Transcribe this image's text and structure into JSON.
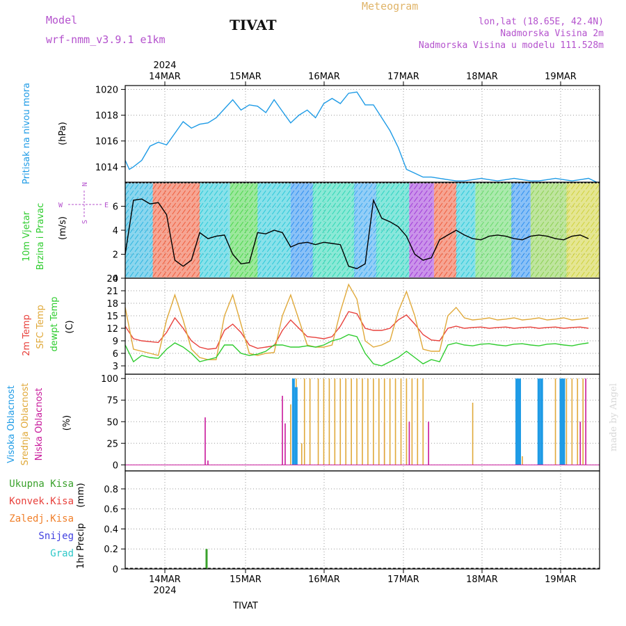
{
  "header": {
    "model_label": "Model",
    "model_name": "wrf-nmm_v3.9.1 e1km",
    "station": "TIVAT",
    "product": "Meteogram",
    "coords": "lon,lat (18.65E, 42.4N)",
    "elevation": "Nadmorska Visina 2m",
    "model_elevation": "Nadmorska Visina u modelu 111.528m",
    "footer_station": "TIVAT",
    "credit": "made by Angel",
    "year": "2024"
  },
  "colors": {
    "pressure": "#1e9be6",
    "temp2m": "#e8413c",
    "sfc": "#e0a93a",
    "dewpt": "#2ecc2e",
    "high_cloud": "#1e9be6",
    "mid_cloud": "#e0a93a",
    "low_cloud": "#c8189b",
    "total_rain": "#3aa12c",
    "conv_rain": "#e8413c",
    "frz_rain": "#f07f2a",
    "snow": "#4040e0",
    "hail": "#2ec8c8",
    "label_purple": "#b452cd"
  },
  "chart_data": [
    {
      "panel": "pressure",
      "type": "line",
      "ylabel_name": "Pritisak na nivou mora",
      "ylabel_unit": "(hPa)",
      "ylim": [
        1012.8,
        1020.3
      ],
      "yticks": [
        1014,
        1016,
        1018,
        1020
      ],
      "xticks": [
        "14MAR",
        "15MAR",
        "16MAR",
        "17MAR",
        "18MAR",
        "19MAR"
      ],
      "grid": true,
      "series": [
        {
          "key": "pressure",
          "x": [
            0,
            1.5,
            3,
            6,
            9,
            12,
            15,
            18,
            21,
            24,
            27,
            30,
            33,
            36,
            39,
            42,
            45,
            48,
            51,
            54,
            57,
            60,
            63,
            66,
            69,
            72,
            75,
            78,
            81,
            84,
            87,
            90,
            93,
            96,
            99,
            102,
            105,
            108,
            111,
            114,
            117,
            120,
            123,
            126,
            129,
            132,
            135,
            138,
            141,
            144,
            147,
            150,
            153,
            156,
            159,
            162,
            165,
            168,
            171
          ],
          "values": [
            1014.5,
            1013.8,
            1014.0,
            1014.5,
            1015.6,
            1015.9,
            1015.7,
            1016.6,
            1017.5,
            1017.0,
            1017.3,
            1017.4,
            1017.8,
            1018.5,
            1019.2,
            1018.4,
            1018.8,
            1018.7,
            1018.2,
            1019.2,
            1018.3,
            1017.4,
            1018.0,
            1018.4,
            1017.8,
            1018.9,
            1019.3,
            1018.9,
            1019.7,
            1019.8,
            1018.8,
            1018.8,
            1017.8,
            1016.8,
            1015.5,
            1013.8,
            1013.5,
            1013.2,
            1013.2,
            1013.1,
            1013.0,
            1012.9,
            1012.9,
            1013.0,
            1013.1,
            1013.0,
            1012.9,
            1013.0,
            1013.1,
            1013.0,
            1012.9,
            1012.9,
            1013.0,
            1013.1,
            1013.0,
            1012.9,
            1013.0,
            1013.1,
            1012.8
          ]
        }
      ]
    },
    {
      "panel": "wind",
      "type": "line",
      "ylabel_name": [
        "10m Vjetar",
        "Brzina i Pravac"
      ],
      "ylabel_unit": "(m/s)",
      "compass": {
        "north": "N",
        "south": "S",
        "east": "E",
        "west": "W"
      },
      "ylim": [
        0,
        8
      ],
      "yticks": [
        0,
        2,
        4,
        6
      ],
      "grid": true,
      "series": [
        {
          "key": "wind_speed",
          "x": [
            0,
            3,
            6,
            9,
            12,
            15,
            18,
            21,
            24,
            27,
            30,
            33,
            36,
            39,
            42,
            45,
            48,
            51,
            54,
            57,
            60,
            63,
            66,
            69,
            72,
            75,
            78,
            81,
            84,
            87,
            90,
            93,
            96,
            99,
            102,
            105,
            108,
            111,
            114,
            117,
            120,
            123,
            126,
            129,
            132,
            135,
            138,
            141,
            144,
            147,
            150,
            153,
            156,
            159,
            162,
            165,
            168
          ],
          "values": [
            2.0,
            6.5,
            6.6,
            6.2,
            6.3,
            5.3,
            1.5,
            1.0,
            1.5,
            3.8,
            3.3,
            3.5,
            3.6,
            2.0,
            1.2,
            1.3,
            3.8,
            3.7,
            4.0,
            3.8,
            2.6,
            2.9,
            3.0,
            2.8,
            3.0,
            2.9,
            2.8,
            1.0,
            0.8,
            1.2,
            6.5,
            5.0,
            4.7,
            4.3,
            3.5,
            2.0,
            1.5,
            1.7,
            3.2,
            3.6,
            4.0,
            3.6,
            3.3,
            3.2,
            3.5,
            3.6,
            3.5,
            3.3,
            3.2,
            3.5,
            3.6,
            3.5,
            3.3,
            3.2,
            3.5,
            3.6,
            3.3
          ]
        }
      ]
    },
    {
      "panel": "temperature",
      "type": "line",
      "ylabel_name": [
        "2m Temp",
        "SFC Temp",
        "dewpt Temp"
      ],
      "ylabel_unit": "(C)",
      "ylim": [
        1,
        24
      ],
      "yticks": [
        3,
        6,
        9,
        12,
        15,
        18,
        21,
        24
      ],
      "grid": true,
      "series": [
        {
          "key": "temp2m",
          "x": [
            0,
            3,
            6,
            9,
            12,
            15,
            18,
            21,
            24,
            27,
            30,
            33,
            36,
            39,
            42,
            45,
            48,
            51,
            54,
            57,
            60,
            63,
            66,
            69,
            72,
            75,
            78,
            81,
            84,
            87,
            90,
            93,
            96,
            99,
            102,
            105,
            108,
            111,
            114,
            117,
            120,
            123,
            126,
            129,
            132,
            135,
            138,
            141,
            144,
            147,
            150,
            153,
            156,
            159,
            162,
            165,
            168
          ],
          "values": [
            12.5,
            9.5,
            9.0,
            8.8,
            8.6,
            11.0,
            14.5,
            12.0,
            9.0,
            7.5,
            7.0,
            7.2,
            11.5,
            13.0,
            11.0,
            8.0,
            7.2,
            7.5,
            7.8,
            11.5,
            14.0,
            12.0,
            10.0,
            9.8,
            9.5,
            10.0,
            12.5,
            16.0,
            15.5,
            12.0,
            11.5,
            11.5,
            12.0,
            14.0,
            15.2,
            13.0,
            10.5,
            9.2,
            9.0,
            12.0,
            12.5,
            12.0,
            12.2,
            12.3,
            12.0,
            12.2,
            12.3,
            12.0,
            12.2,
            12.3,
            12.0,
            12.2,
            12.3,
            12.0,
            12.2,
            12.3,
            12.0
          ]
        },
        {
          "key": "sfc",
          "x": [
            0,
            3,
            6,
            9,
            12,
            15,
            18,
            21,
            24,
            27,
            30,
            33,
            36,
            39,
            42,
            45,
            48,
            51,
            54,
            57,
            60,
            63,
            66,
            69,
            72,
            75,
            78,
            81,
            84,
            87,
            90,
            93,
            96,
            99,
            102,
            105,
            108,
            111,
            114,
            117,
            120,
            123,
            126,
            129,
            132,
            135,
            138,
            141,
            144,
            147,
            150,
            153,
            156,
            159,
            162,
            165,
            168
          ],
          "values": [
            17.0,
            7.0,
            6.5,
            6.0,
            5.5,
            14.0,
            20.0,
            14.0,
            7.0,
            5.0,
            4.5,
            4.5,
            15.0,
            20.0,
            13.0,
            6.0,
            5.5,
            6.0,
            6.2,
            15.0,
            20.0,
            14.0,
            8.0,
            7.5,
            7.5,
            8.0,
            16.0,
            22.5,
            19.0,
            9.0,
            7.5,
            8.0,
            9.0,
            16.0,
            20.8,
            15.0,
            7.0,
            6.5,
            6.5,
            15.0,
            17.0,
            14.5,
            14.0,
            14.2,
            14.5,
            14.0,
            14.2,
            14.5,
            14.0,
            14.2,
            14.5,
            14.0,
            14.2,
            14.5,
            14.0,
            14.2,
            14.5
          ]
        },
        {
          "key": "dewpt",
          "x": [
            0,
            3,
            6,
            9,
            12,
            15,
            18,
            21,
            24,
            27,
            30,
            33,
            36,
            39,
            42,
            45,
            48,
            51,
            54,
            57,
            60,
            63,
            66,
            69,
            72,
            75,
            78,
            81,
            84,
            87,
            90,
            93,
            96,
            99,
            102,
            105,
            108,
            111,
            114,
            117,
            120,
            123,
            126,
            129,
            132,
            135,
            138,
            141,
            144,
            147,
            150,
            153,
            156,
            159,
            162,
            165,
            168
          ],
          "values": [
            8.0,
            4.0,
            5.5,
            5.0,
            4.8,
            7.0,
            8.5,
            7.5,
            6.0,
            4.0,
            4.5,
            5.0,
            8.0,
            8.0,
            6.0,
            5.5,
            5.8,
            6.5,
            8.0,
            8.0,
            7.5,
            7.5,
            7.8,
            7.5,
            8.0,
            9.0,
            9.5,
            10.5,
            10.0,
            6.0,
            3.5,
            3.0,
            4.0,
            5.0,
            6.5,
            5.0,
            3.5,
            4.5,
            4.0,
            8.0,
            8.5,
            8.0,
            7.8,
            8.2,
            8.3,
            8.0,
            7.8,
            8.2,
            8.3,
            8.0,
            7.8,
            8.2,
            8.3,
            8.0,
            7.8,
            8.2,
            8.5
          ]
        }
      ]
    },
    {
      "panel": "clouds",
      "type": "bar",
      "ylabel_name": [
        "Visoka Oblacnost",
        "Srednja Oblacnost",
        "Niska Oblacnost"
      ],
      "ylabel_unit": "(%)",
      "ylim": [
        -7,
        105
      ],
      "yticks": [
        0,
        25,
        50,
        75,
        100
      ],
      "grid": true,
      "series": [
        {
          "key": "low_cloud",
          "x": [
            29,
            30,
            57,
            58,
            94,
            103,
            110,
            165,
            167
          ],
          "values": [
            55,
            5,
            80,
            48,
            50,
            50,
            50,
            50,
            100
          ]
        },
        {
          "key": "mid_cloud",
          "x": [
            60,
            62,
            64,
            65,
            67,
            70,
            72,
            74,
            76,
            78,
            80,
            82,
            84,
            86,
            88,
            90,
            92,
            94,
            96,
            98,
            100,
            102,
            104,
            106,
            108,
            112,
            126,
            143,
            144,
            156,
            158,
            160,
            162,
            164,
            166
          ],
          "values": [
            70,
            100,
            25,
            100,
            100,
            100,
            100,
            100,
            100,
            100,
            100,
            100,
            100,
            100,
            100,
            100,
            100,
            100,
            100,
            100,
            100,
            100,
            100,
            100,
            100,
            0,
            72,
            15,
            10,
            100,
            100,
            100,
            100,
            100,
            100
          ]
        },
        {
          "key": "high_cloud",
          "x": [
            61,
            62,
            142,
            143,
            150,
            151,
            158,
            159
          ],
          "values": [
            100,
            90,
            100,
            100,
            100,
            100,
            100,
            100
          ]
        }
      ]
    },
    {
      "panel": "precip",
      "type": "bar",
      "ylabel_name": "1hr Precip",
      "ylabel_unit": "(mm)",
      "legend": [
        "Ukupna Kisa",
        "Konvek.Kisa",
        "Zaledj.Kisa",
        "Snijeg",
        "Grad"
      ],
      "ylim": [
        0,
        0.98
      ],
      "yticks": [
        0,
        0.2,
        0.4,
        0.6,
        0.8
      ],
      "grid": true,
      "series": [
        {
          "key": "total_rain",
          "x": [
            29.5
          ],
          "values": [
            0.2
          ]
        }
      ]
    }
  ]
}
